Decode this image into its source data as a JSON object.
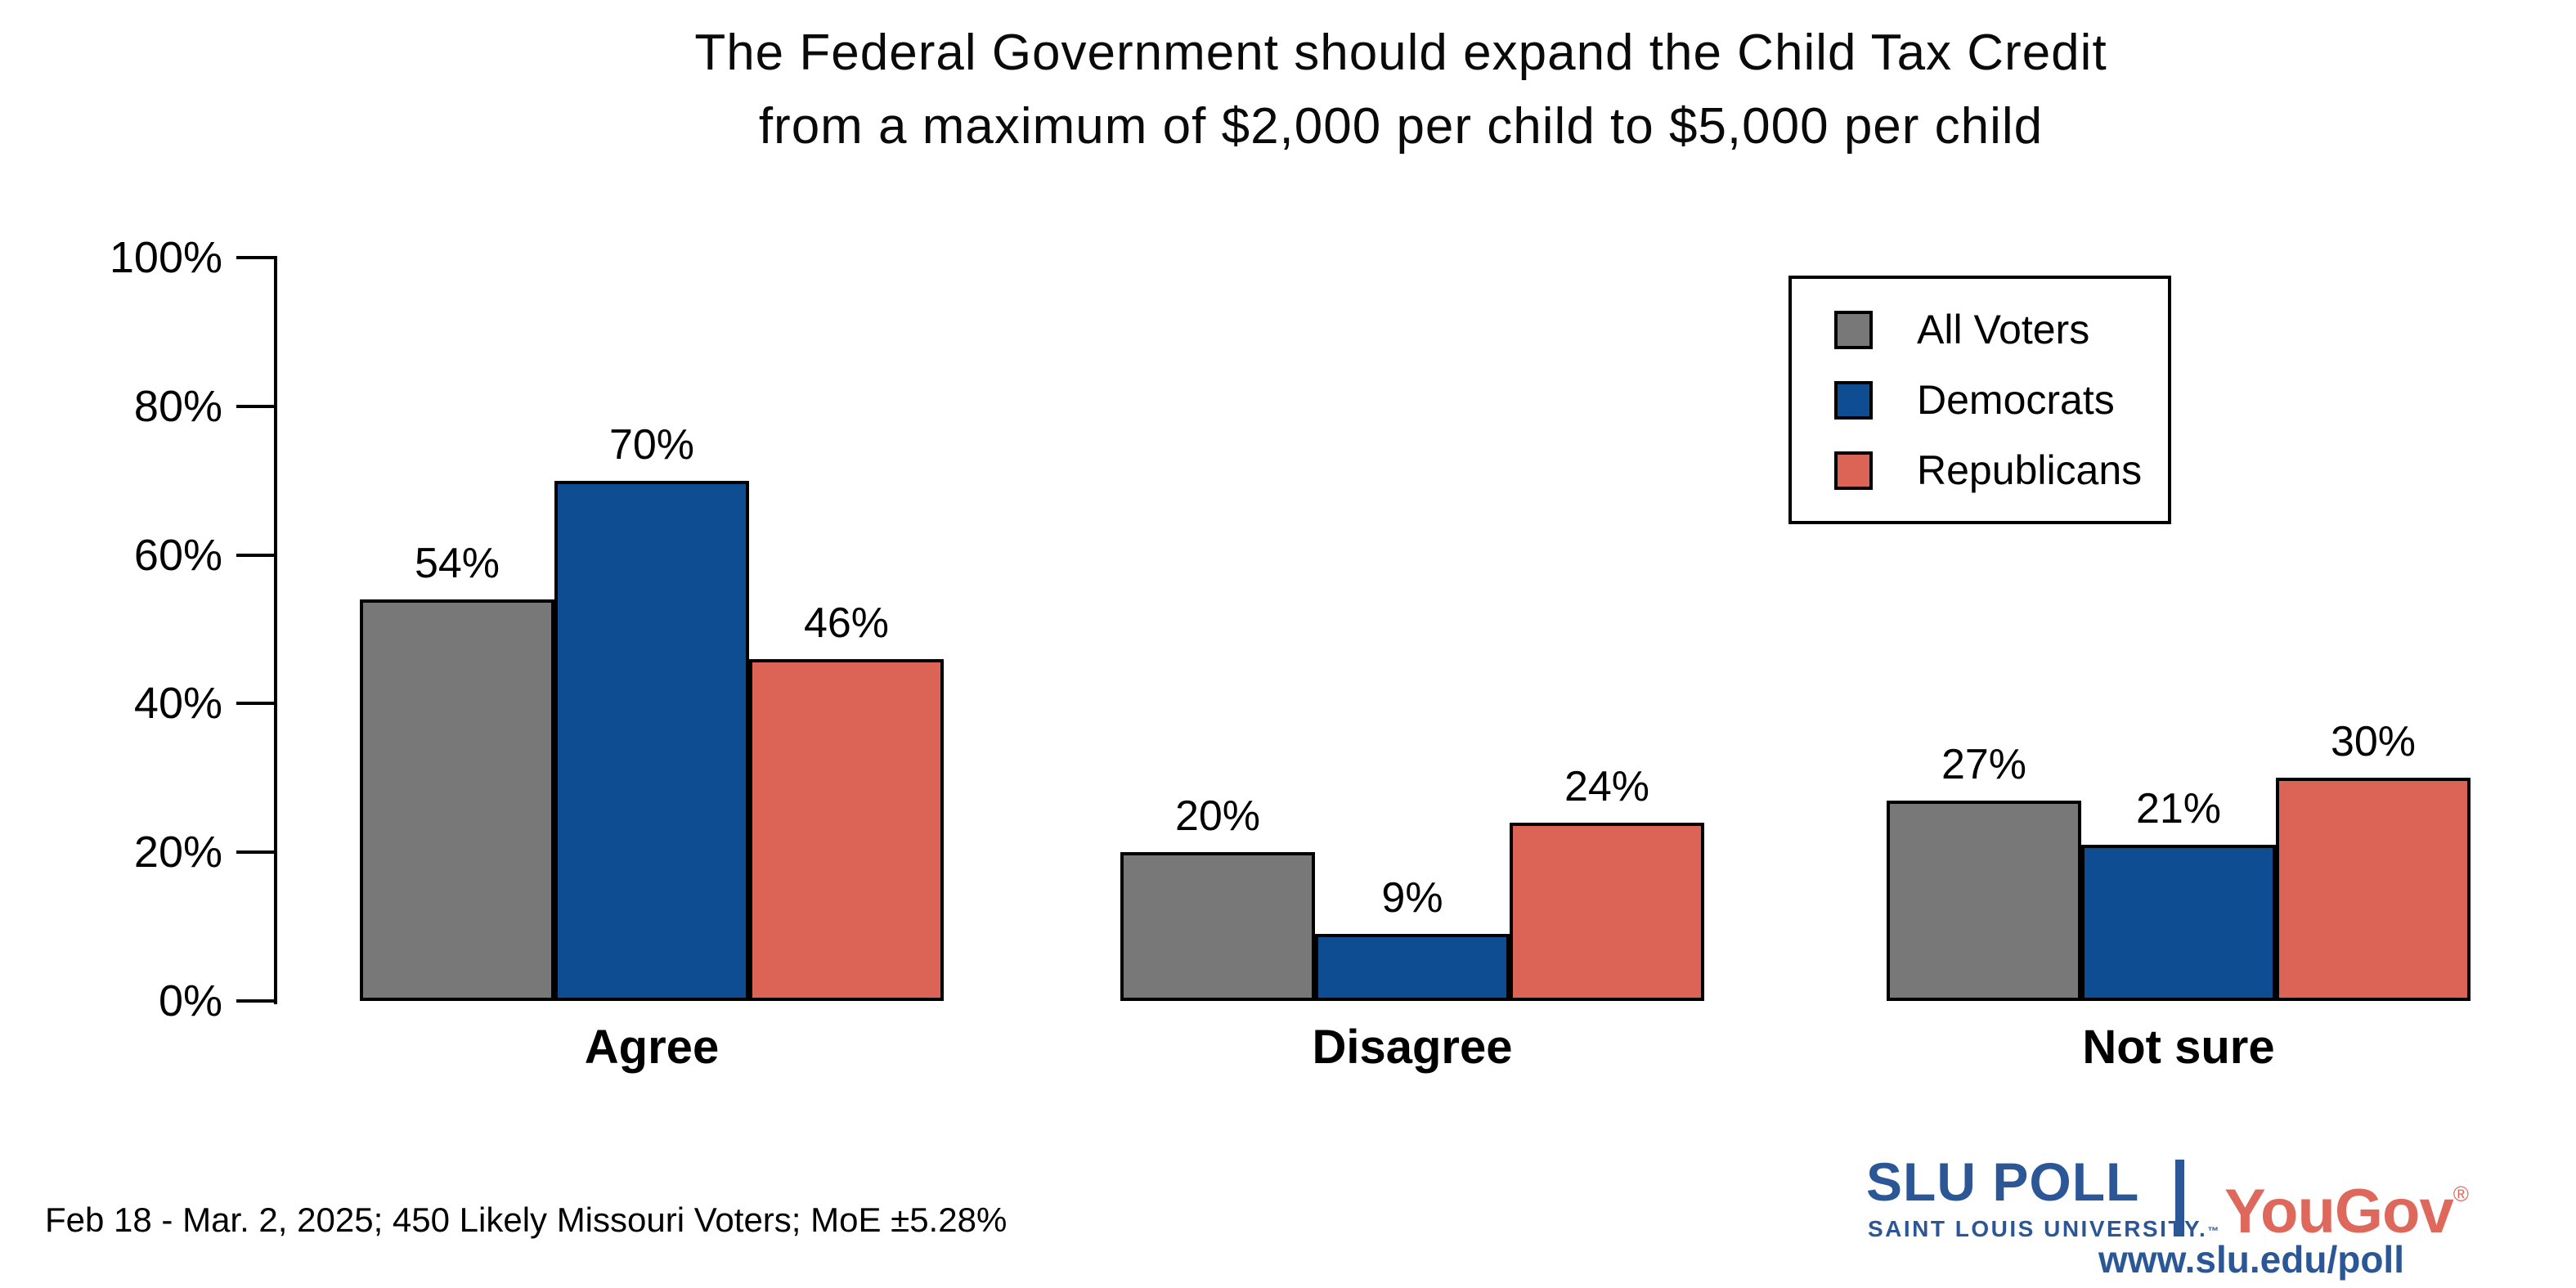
{
  "title": {
    "line1": "The Federal Government should expand the Child Tax Credit",
    "line2": "from a maximum of $2,000 per child to $5,000 per child"
  },
  "chart_data": {
    "type": "bar",
    "categories": [
      "Agree",
      "Disagree",
      "Not sure"
    ],
    "series": [
      {
        "name": "All Voters",
        "color": "#787878",
        "values": [
          54,
          20,
          27
        ]
      },
      {
        "name": "Democrats",
        "color": "#0e4d92",
        "values": [
          70,
          9,
          21
        ]
      },
      {
        "name": "Republicans",
        "color": "#db6456",
        "values": [
          46,
          24,
          30
        ]
      }
    ],
    "value_labels": [
      [
        "54%",
        "20%",
        "27%"
      ],
      [
        "70%",
        "9%",
        "21%"
      ],
      [
        "46%",
        "24%",
        "30%"
      ]
    ],
    "ylim": [
      0,
      100
    ],
    "yticks": [
      "0%",
      "20%",
      "40%",
      "60%",
      "80%",
      "100%"
    ],
    "grid": false,
    "legend_position": "top-right",
    "bar_edge_color": "#000000"
  },
  "legend": {
    "items": [
      {
        "label": "All Voters",
        "color": "#787878"
      },
      {
        "label": "Democrats",
        "color": "#0e4d92"
      },
      {
        "label": "Republicans",
        "color": "#db6456"
      }
    ]
  },
  "footer": {
    "note": "Feb 18 - Mar. 2, 2025; 450 Likely Missouri Voters; MoE ±5.28%"
  },
  "branding": {
    "slu_word": "SLU",
    "poll_word": "POLL",
    "slu_subtitle": "SAINT LOUIS UNIVERSITY.",
    "slu_tm": "™",
    "partner": "YouGov",
    "partner_reg": "®",
    "url": "www.slu.edu/poll",
    "slu_blue": "#2b5796",
    "partner_coral": "#df685c"
  }
}
